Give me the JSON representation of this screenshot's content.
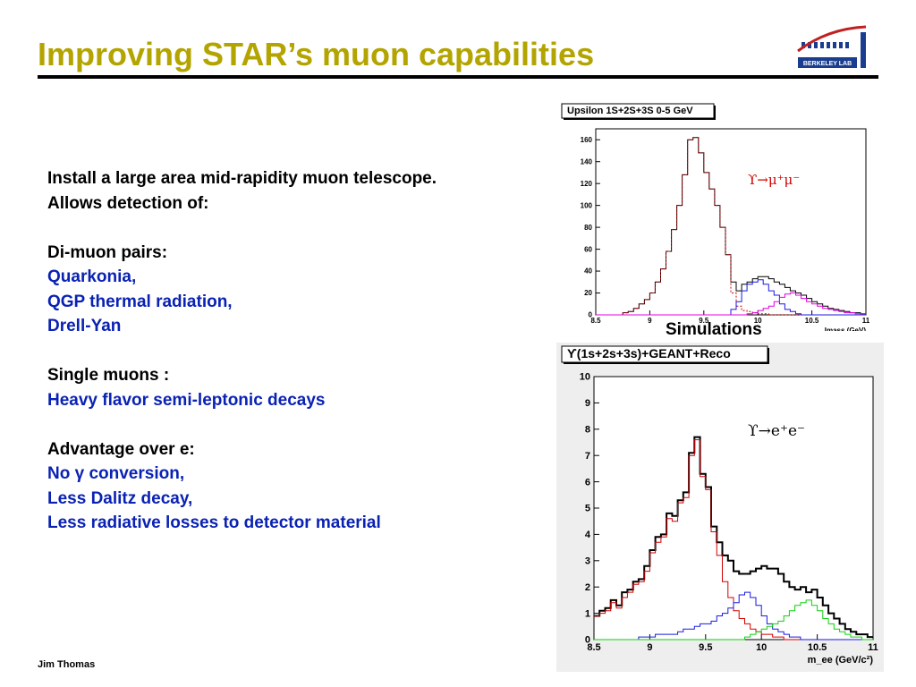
{
  "slide": {
    "title": "Improving STAR’s muon capabilities",
    "footer": "Jim Thomas",
    "logo_text": "BERKELEY LAB"
  },
  "content": {
    "lines": [
      {
        "text": "Install a large area mid-rapidity muon telescope.",
        "color": "black"
      },
      {
        "text": "Allows detection of:",
        "color": "black"
      },
      {
        "text": "",
        "color": "gap"
      },
      {
        "text": "Di-muon pairs:",
        "color": "black"
      },
      {
        "text": "Quarkonia,",
        "color": "blue"
      },
      {
        "text": "QGP thermal radiation,",
        "color": "blue"
      },
      {
        "text": "Drell-Yan",
        "color": "blue"
      },
      {
        "text": "",
        "color": "gap"
      },
      {
        "text": "Single muons :",
        "color": "black"
      },
      {
        "text": "Heavy flavor semi-leptonic decays",
        "color": "blue"
      },
      {
        "text": "",
        "color": "gap"
      },
      {
        "text": "Advantage over e:",
        "color": "black"
      },
      {
        "text": "No γ conversion,",
        "color": "blue"
      },
      {
        "text": "Less Dalitz decay,",
        "color": "blue"
      },
      {
        "text": "Less radiative losses to detector material",
        "color": "blue"
      }
    ]
  },
  "simulations_label": "Simulations",
  "colors": {
    "title": "#b3a400",
    "body_blue": "#0a22b4",
    "series_black": "#000000",
    "series_red": "#d00000",
    "series_blue": "#1a1ae0",
    "series_magenta": "#e000e0",
    "series_green": "#10d010"
  },
  "chart_data": [
    {
      "type": "line",
      "title": "Upsilon 1S+2S+3S 0-5 GeV",
      "annotation": "ϒ→μ⁺μ⁻",
      "xlabel": "Imass (GeV)",
      "ylabel": "",
      "xlim": [
        8.5,
        11
      ],
      "ylim": [
        0,
        170
      ],
      "xticks": [
        "8.5",
        "9",
        "9.5",
        "10",
        "10.5",
        "11"
      ],
      "yticks": [
        "0",
        "20",
        "40",
        "60",
        "80",
        "100",
        "120",
        "140",
        "160"
      ],
      "x": [
        8.5,
        8.55,
        8.6,
        8.65,
        8.7,
        8.75,
        8.8,
        8.85,
        8.9,
        8.95,
        9.0,
        9.05,
        9.1,
        9.15,
        9.2,
        9.25,
        9.3,
        9.35,
        9.4,
        9.45,
        9.5,
        9.55,
        9.6,
        9.65,
        9.7,
        9.75,
        9.8,
        9.85,
        9.9,
        9.95,
        10.0,
        10.05,
        10.1,
        10.15,
        10.2,
        10.25,
        10.3,
        10.35,
        10.4,
        10.45,
        10.5,
        10.55,
        10.6,
        10.65,
        10.7,
        10.75,
        10.8,
        10.85,
        10.9,
        10.95
      ],
      "series": [
        {
          "color": "#000000",
          "style": "step",
          "values": [
            0,
            0,
            0,
            0,
            0,
            2,
            3,
            6,
            10,
            14,
            20,
            30,
            42,
            58,
            78,
            100,
            128,
            160,
            162,
            148,
            130,
            115,
            100,
            80,
            55,
            30,
            22,
            28,
            30,
            33,
            35,
            35,
            33,
            30,
            28,
            25,
            22,
            20,
            18,
            15,
            12,
            10,
            8,
            6,
            5,
            4,
            3,
            2,
            2,
            1
          ]
        },
        {
          "color": "#d00000",
          "style": "dotted",
          "values": [
            0,
            0,
            0,
            0,
            0,
            2,
            3,
            6,
            10,
            14,
            20,
            30,
            42,
            58,
            78,
            100,
            128,
            160,
            162,
            148,
            130,
            115,
            100,
            80,
            55,
            20,
            8,
            4,
            3,
            2,
            1,
            1,
            0,
            0,
            0,
            0,
            0,
            0,
            0,
            0,
            0,
            0,
            0,
            0,
            0,
            0,
            0,
            0,
            0,
            0
          ]
        },
        {
          "color": "#1a1ae0",
          "style": "step",
          "values": [
            0,
            0,
            0,
            0,
            0,
            0,
            0,
            0,
            0,
            0,
            0,
            0,
            0,
            0,
            0,
            0,
            0,
            0,
            0,
            0,
            0,
            0,
            0,
            0,
            0,
            5,
            12,
            22,
            28,
            30,
            32,
            28,
            22,
            18,
            10,
            5,
            3,
            1,
            0,
            0,
            0,
            0,
            0,
            0,
            0,
            0,
            0,
            0,
            0,
            0
          ]
        },
        {
          "color": "#e000e0",
          "style": "step",
          "values": [
            0,
            0,
            0,
            0,
            0,
            0,
            0,
            0,
            0,
            0,
            0,
            0,
            0,
            0,
            0,
            0,
            0,
            0,
            0,
            0,
            0,
            0,
            0,
            0,
            0,
            0,
            0,
            0,
            1,
            2,
            4,
            6,
            8,
            12,
            16,
            19,
            20,
            18,
            15,
            12,
            10,
            8,
            6,
            5,
            4,
            3,
            2,
            2,
            1,
            1
          ]
        }
      ]
    },
    {
      "type": "line",
      "title": "ϒ(1s+2s+3s)+GEANT+Reco",
      "annotation": "ϒ→e⁺e⁻",
      "xlabel": "m_ee (GeV/c²)",
      "ylabel": "",
      "xlim": [
        8.5,
        11
      ],
      "ylim": [
        0,
        10
      ],
      "xticks": [
        "8.5",
        "9",
        "9.5",
        "10",
        "10.5",
        "11"
      ],
      "yticks": [
        "0",
        "1",
        "2",
        "3",
        "4",
        "5",
        "6",
        "7",
        "8",
        "9",
        "10"
      ],
      "x": [
        8.5,
        8.55,
        8.6,
        8.65,
        8.7,
        8.75,
        8.8,
        8.85,
        8.9,
        8.95,
        9.0,
        9.05,
        9.1,
        9.15,
        9.2,
        9.25,
        9.3,
        9.35,
        9.4,
        9.45,
        9.5,
        9.55,
        9.6,
        9.65,
        9.7,
        9.75,
        9.8,
        9.85,
        9.9,
        9.95,
        10.0,
        10.05,
        10.1,
        10.15,
        10.2,
        10.25,
        10.3,
        10.35,
        10.4,
        10.45,
        10.5,
        10.55,
        10.6,
        10.65,
        10.7,
        10.75,
        10.8,
        10.85,
        10.9,
        10.95
      ],
      "series": [
        {
          "color": "#000000",
          "style": "step",
          "values": [
            0.9,
            1.1,
            1.2,
            1.5,
            1.3,
            1.8,
            1.9,
            2.2,
            2.3,
            2.8,
            3.4,
            3.9,
            4.0,
            4.8,
            4.7,
            5.3,
            5.6,
            7.1,
            7.7,
            6.3,
            5.8,
            4.3,
            3.7,
            3.2,
            3.0,
            2.6,
            2.5,
            2.5,
            2.6,
            2.7,
            2.8,
            2.7,
            2.7,
            2.5,
            2.2,
            2.0,
            1.9,
            2.0,
            1.8,
            1.9,
            1.6,
            1.3,
            1.0,
            0.8,
            0.6,
            0.4,
            0.3,
            0.2,
            0.2,
            0.1
          ]
        },
        {
          "color": "#d00000",
          "style": "step",
          "values": [
            0.9,
            1.0,
            1.1,
            1.4,
            1.2,
            1.6,
            1.8,
            2.1,
            2.2,
            2.6,
            3.3,
            3.7,
            3.9,
            4.6,
            4.5,
            5.2,
            5.4,
            7.0,
            7.6,
            6.2,
            5.7,
            4.1,
            3.2,
            2.2,
            1.6,
            1.1,
            0.8,
            0.6,
            0.4,
            0.3,
            0.2,
            0.2,
            0.1,
            0.1,
            0,
            0,
            0,
            0,
            0,
            0,
            0,
            0,
            0,
            0,
            0,
            0,
            0,
            0,
            0,
            0
          ]
        },
        {
          "color": "#1a1ae0",
          "style": "step",
          "values": [
            0,
            0,
            0,
            0,
            0,
            0,
            0,
            0,
            0.1,
            0.1,
            0.1,
            0.2,
            0.2,
            0.2,
            0.2,
            0.3,
            0.4,
            0.4,
            0.5,
            0.6,
            0.6,
            0.7,
            0.9,
            1.0,
            1.2,
            1.4,
            1.7,
            1.8,
            1.6,
            1.3,
            0.9,
            0.6,
            0.4,
            0.3,
            0.2,
            0.1,
            0.1,
            0,
            0,
            0,
            0,
            0,
            0,
            0,
            0,
            0,
            0,
            0,
            0,
            0
          ]
        },
        {
          "color": "#10d010",
          "style": "step",
          "values": [
            0,
            0,
            0,
            0,
            0,
            0,
            0,
            0,
            0,
            0,
            0,
            0,
            0,
            0,
            0,
            0,
            0,
            0,
            0,
            0,
            0,
            0,
            0,
            0,
            0,
            0,
            0,
            0.1,
            0.2,
            0.3,
            0.4,
            0.5,
            0.6,
            0.7,
            0.9,
            1.1,
            1.3,
            1.4,
            1.5,
            1.3,
            1.1,
            0.8,
            0.6,
            0.4,
            0.3,
            0.2,
            0.1,
            0.1,
            0,
            0
          ]
        }
      ]
    }
  ]
}
